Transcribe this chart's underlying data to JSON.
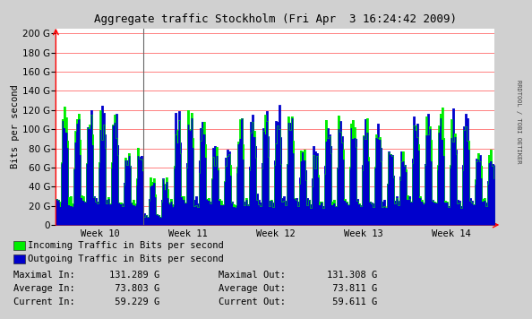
{
  "title": "Aggregate traffic Stockholm (Fri Apr  3 16:24:42 2009)",
  "ylabel": "Bits per second",
  "xlabel_ticks": [
    "Week 10",
    "Week 11",
    "Week 12",
    "Week 13",
    "Week 14"
  ],
  "ytick_values": [
    0,
    20,
    40,
    60,
    80,
    100,
    120,
    140,
    160,
    180,
    200
  ],
  "ytick_labels": [
    "0",
    "20 G",
    "40 G",
    "60 G",
    "80 G",
    "100 G",
    "120 G",
    "140 G",
    "160 G",
    "180 G",
    "200 G"
  ],
  "ymax": 205,
  "xmin": 0,
  "xmax": 5,
  "background_color": "#d0d0d0",
  "plot_bg_color": "#ffffff",
  "grid_color": "#ff8080",
  "incoming_color": "#00ee00",
  "outgoing_color": "#0000cc",
  "side_label": "RRDTOOL / TOBI OETIKER",
  "legend_in": "Incoming Traffic in Bits per second",
  "legend_out": "Outgoing Traffic in Bits per second",
  "stats": [
    [
      "Maximal In:",
      "131.289 G",
      "Maximal Out:",
      "131.308 G"
    ],
    [
      "Average In:",
      " 73.803 G",
      "Average Out:",
      " 73.811 G"
    ],
    [
      "Current In:",
      " 59.229 G",
      "Current Out:",
      " 59.611 G"
    ]
  ]
}
